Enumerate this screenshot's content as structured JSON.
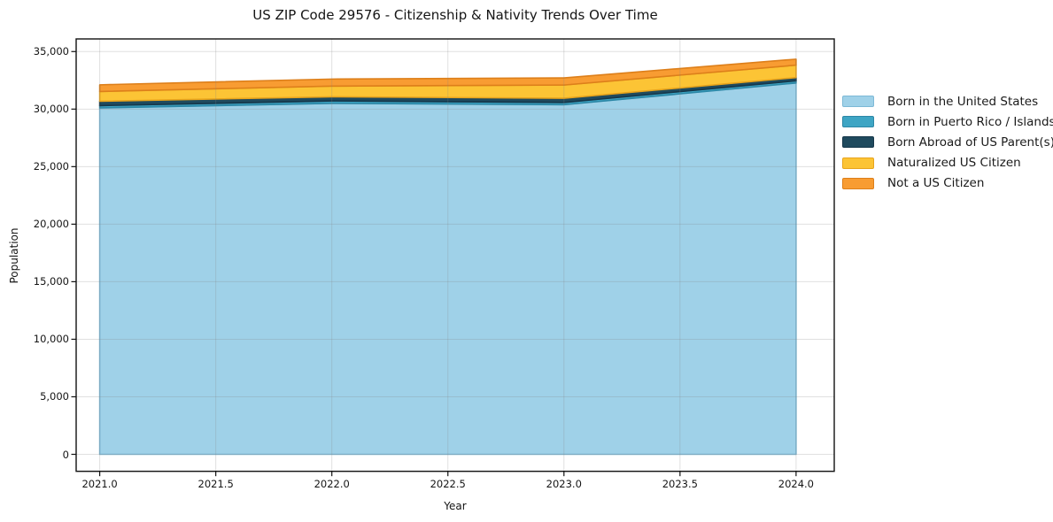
{
  "chart_data": {
    "type": "area",
    "stacked": true,
    "title": "US ZIP Code 29576 - Citizenship & Nativity Trends Over Time",
    "xlabel": "Year",
    "ylabel": "Population",
    "x": [
      2021,
      2022,
      2023,
      2024
    ],
    "series": [
      {
        "name": "Born in the United States",
        "color": "#9fd1e8",
        "edge": "#7db9d6",
        "values": [
          30100,
          30500,
          30380,
          32270
        ]
      },
      {
        "name": "Born in Puerto Rico / Islands",
        "color": "#3ea5c4",
        "edge": "#2c87a6",
        "values": [
          200,
          210,
          200,
          190
        ]
      },
      {
        "name": "Born Abroad of US Parent(s)",
        "color": "#1f4a5e",
        "edge": "#16374a",
        "values": [
          380,
          360,
          360,
          280
        ]
      },
      {
        "name": "Naturalized US Citizen",
        "color": "#fcc435",
        "edge": "#e8a41c",
        "values": [
          850,
          930,
          1150,
          1080
        ]
      },
      {
        "name": "Not a US Citizen",
        "color": "#f89c32",
        "edge": "#dd7f1a",
        "values": [
          580,
          610,
          620,
          520
        ]
      }
    ],
    "totals": [
      32110,
      32610,
      32710,
      34340
    ],
    "xlim": [
      2020.8985,
      2024.1645
    ],
    "ylim": [
      -1476,
      36098
    ],
    "xticks": {
      "values": [
        2021.0,
        2021.5,
        2022.0,
        2022.5,
        2023.0,
        2023.5,
        2024.0
      ],
      "labels": [
        "2021.0",
        "2021.5",
        "2022.0",
        "2022.5",
        "2023.0",
        "2023.5",
        "2024.0"
      ]
    },
    "yticks": {
      "values": [
        0,
        5000,
        10000,
        15000,
        20000,
        25000,
        30000,
        35000
      ],
      "labels": [
        "0",
        "5,000",
        "10,000",
        "15,000",
        "20,000",
        "25,000",
        "30,000",
        "35,000"
      ]
    },
    "grid": true,
    "legend_position": "right-outside",
    "colors": {
      "spine": "#111111",
      "grid": "rgba(130,130,130,0.25)",
      "text": "#151515",
      "background": "#ffffff"
    }
  }
}
